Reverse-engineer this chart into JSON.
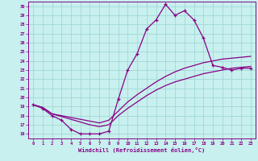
{
  "xlabel": "Windchill (Refroidissement éolien,°C)",
  "bg_color": "#c8f0ee",
  "grid_color": "#a0d8d8",
  "line_color": "#880088",
  "x_ticks": [
    0,
    1,
    2,
    3,
    4,
    5,
    6,
    7,
    8,
    9,
    10,
    11,
    12,
    13,
    14,
    15,
    16,
    17,
    18,
    19,
    20,
    21,
    22,
    23
  ],
  "y_ticks": [
    16,
    17,
    18,
    19,
    20,
    21,
    22,
    23,
    24,
    25,
    26,
    27,
    28,
    29,
    30
  ],
  "ylim": [
    15.5,
    30.5
  ],
  "xlim": [
    -0.5,
    23.5
  ],
  "line1_x": [
    0,
    1,
    2,
    3,
    4,
    5,
    6,
    7,
    8,
    9,
    10,
    11,
    12,
    13,
    14,
    15,
    16,
    17,
    18,
    19,
    20,
    21,
    22,
    23
  ],
  "line1_y": [
    19.2,
    18.8,
    18.0,
    17.5,
    16.5,
    16.0,
    16.0,
    16.0,
    16.3,
    19.8,
    23.0,
    24.8,
    27.5,
    28.5,
    30.2,
    29.0,
    29.5,
    28.5,
    26.5,
    23.5,
    23.3,
    23.0,
    23.2,
    23.2
  ],
  "line2_x": [
    0,
    1,
    2,
    3,
    4,
    5,
    6,
    7,
    8,
    9,
    10,
    11,
    12,
    13,
    14,
    15,
    16,
    17,
    18,
    19,
    20,
    21,
    22,
    23
  ],
  "line2_y": [
    19.2,
    18.9,
    18.2,
    18.0,
    17.8,
    17.6,
    17.4,
    17.2,
    17.5,
    18.5,
    19.5,
    20.3,
    21.0,
    21.7,
    22.3,
    22.8,
    23.2,
    23.5,
    23.8,
    24.0,
    24.2,
    24.3,
    24.4,
    24.5
  ],
  "line3_x": [
    0,
    1,
    2,
    3,
    4,
    5,
    6,
    7,
    8,
    9,
    10,
    11,
    12,
    13,
    14,
    15,
    16,
    17,
    18,
    19,
    20,
    21,
    22,
    23
  ],
  "line3_y": [
    19.2,
    18.9,
    18.2,
    17.9,
    17.6,
    17.3,
    17.0,
    16.8,
    17.0,
    18.0,
    18.8,
    19.5,
    20.2,
    20.8,
    21.3,
    21.7,
    22.0,
    22.3,
    22.6,
    22.8,
    23.0,
    23.2,
    23.3,
    23.4
  ]
}
